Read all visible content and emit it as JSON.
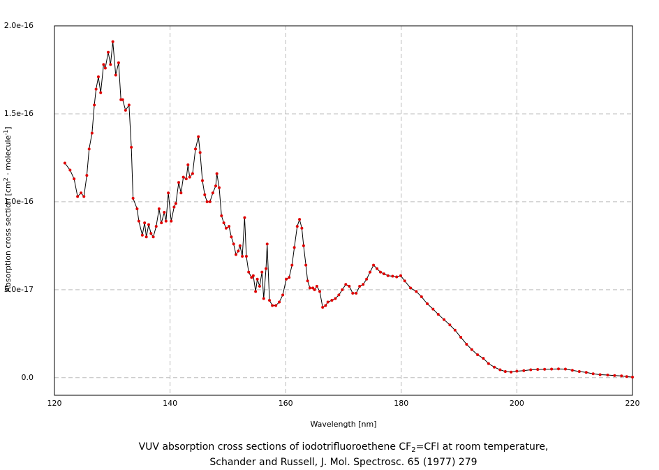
{
  "chart_data": {
    "type": "line",
    "ylabel": [
      "Absorption cross section [cm",
      "2",
      " · molecule",
      "-1",
      "]"
    ],
    "xlabel": "Wavelength [nm]",
    "caption": [
      "VUV absorption cross sections of iodotrifluoroethene CF",
      "2",
      "=CFI at room temperature,",
      "Schander and Russell, J. Mol. Spectrosc. 65 (1977) 279"
    ],
    "xlim": [
      120,
      220
    ],
    "xticks": [
      120,
      140,
      160,
      180,
      200,
      220
    ],
    "ylim": [
      -1e-17,
      2e-16
    ],
    "yticks": [
      {
        "value": 0,
        "label": "0.0"
      },
      {
        "value": 5e-17,
        "label": "5.0e-17"
      },
      {
        "value": 1e-16,
        "label": "1.0e-16"
      },
      {
        "value": 1.5e-16,
        "label": "1.5e-16"
      },
      {
        "value": 2e-16,
        "label": "2.0e-16"
      }
    ],
    "grid": true,
    "line_color": "#000000",
    "marker_color": "#e00000",
    "x": [
      121.8,
      122.7,
      123.4,
      124,
      124.6,
      125.1,
      125.6,
      126,
      126.5,
      126.9,
      127.2,
      127.6,
      128,
      128.5,
      128.8,
      129.3,
      129.7,
      130.1,
      130.6,
      131.1,
      131.5,
      131.8,
      132.3,
      132.9,
      133.3,
      133.6,
      134.3,
      134.6,
      135.2,
      135.6,
      135.9,
      136.3,
      136.7,
      137.1,
      137.6,
      138.1,
      138.5,
      139,
      139.3,
      139.7,
      140.2,
      140.7,
      141,
      141.5,
      141.9,
      142.3,
      142.8,
      143.1,
      143.4,
      143.9,
      144.4,
      144.9,
      145.2,
      145.6,
      146,
      146.4,
      146.9,
      147.4,
      147.9,
      148.1,
      148.5,
      148.9,
      149.3,
      149.7,
      150.2,
      150.6,
      151,
      151.4,
      151.8,
      152.1,
      152.5,
      152.9,
      153.2,
      153.6,
      154.1,
      154.4,
      154.8,
      155.1,
      155.5,
      155.9,
      156.2,
      156.6,
      156.8,
      157.2,
      157.7,
      158.3,
      158.9,
      159.5,
      160.1,
      160.6,
      161.1,
      161.5,
      162,
      162.4,
      162.8,
      163.1,
      163.5,
      163.8,
      164.2,
      164.7,
      165,
      165.4,
      165.9,
      166.4,
      166.9,
      167.3,
      168,
      168.6,
      169.2,
      169.8,
      170.4,
      171,
      171.6,
      172.2,
      172.8,
      173.4,
      174,
      174.6,
      175.2,
      175.8,
      176.4,
      177,
      177.7,
      178.5,
      179.2,
      179.9,
      180.6,
      181.6,
      182.6,
      183.5,
      184.5,
      185.5,
      186.4,
      187.4,
      188.4,
      189.3,
      190.3,
      191.3,
      192.2,
      193.2,
      194.2,
      195.1,
      196.1,
      197.1,
      198,
      199,
      200,
      201.2,
      202.4,
      203.6,
      204.8,
      206,
      207.2,
      208.4,
      209.6,
      210.8,
      212,
      213.2,
      214.4,
      215.7,
      216.9,
      218.1,
      219,
      220
    ],
    "series": [
      {
        "values": [
          1.22e-16,
          1.18e-16,
          1.13e-16,
          1.03e-16,
          1.05e-16,
          1.03e-16,
          1.15e-16,
          1.3e-16,
          1.39e-16,
          1.55e-16,
          1.64e-16,
          1.71e-16,
          1.62e-16,
          1.78e-16,
          1.76e-16,
          1.85e-16,
          1.78e-16,
          1.91e-16,
          1.72e-16,
          1.79e-16,
          1.58e-16,
          1.58e-16,
          1.52e-16,
          1.55e-16,
          1.31e-16,
          1.02e-16,
          9.6e-17,
          8.9e-17,
          8.1e-17,
          8.8e-17,
          8e-17,
          8.7e-17,
          8.2e-17,
          8e-17,
          8.6e-17,
          9.6e-17,
          8.8e-17,
          9.4e-17,
          8.9e-17,
          1.05e-16,
          8.9e-17,
          9.7e-17,
          9.9e-17,
          1.11e-16,
          1.05e-16,
          1.14e-16,
          1.13e-16,
          1.21e-16,
          1.14e-16,
          1.16e-16,
          1.3e-16,
          1.37e-16,
          1.28e-16,
          1.12e-16,
          1.04e-16,
          1e-16,
          1e-16,
          1.05e-16,
          1.09e-16,
          1.16e-16,
          1.08e-16,
          9.2e-17,
          8.8e-17,
          8.5e-17,
          8.6e-17,
          8e-17,
          7.6e-17,
          7e-17,
          7.2e-17,
          7.5e-17,
          6.9e-17,
          9.1e-17,
          6.9e-17,
          6e-17,
          5.7e-17,
          5.8e-17,
          4.9e-17,
          5.6e-17,
          5.2e-17,
          6e-17,
          4.5e-17,
          6.2e-17,
          7.6e-17,
          4.4e-17,
          4.1e-17,
          4.1e-17,
          4.3e-17,
          4.7e-17,
          5.6e-17,
          5.7e-17,
          6.4e-17,
          7.4e-17,
          8.6e-17,
          9e-17,
          8.5e-17,
          7.5e-17,
          6.4e-17,
          5.5e-17,
          5.1e-17,
          5.1e-17,
          5e-17,
          5.2e-17,
          4.9e-17,
          4e-17,
          4.1e-17,
          4.3e-17,
          4.4e-17,
          4.5e-17,
          4.7e-17,
          5e-17,
          5.3e-17,
          5.2e-17,
          4.8e-17,
          4.8e-17,
          5.2e-17,
          5.3e-17,
          5.6e-17,
          6e-17,
          6.4e-17,
          6.2e-17,
          6e-17,
          5.9e-17,
          5.8e-17,
          5.77e-17,
          5.73e-17,
          5.8e-17,
          5.5e-17,
          5.1e-17,
          4.9e-17,
          4.6e-17,
          4.2e-17,
          3.9e-17,
          3.6e-17,
          3.3e-17,
          3e-17,
          2.7e-17,
          2.3e-17,
          1.9e-17,
          1.6e-17,
          1.3e-17,
          1.1e-17,
          8e-18,
          6e-18,
          4.5e-18,
          3.5e-18,
          3.2e-18,
          3.7e-18,
          4e-18,
          4.5e-18,
          4.7e-18,
          4.8e-18,
          4.9e-18,
          5e-18,
          4.9e-18,
          4.2e-18,
          3.5e-18,
          3e-18,
          2.2e-18,
          1.7e-18,
          1.5e-18,
          1.2e-18,
          1e-18,
          6e-19,
          3e-19
        ]
      }
    ]
  }
}
